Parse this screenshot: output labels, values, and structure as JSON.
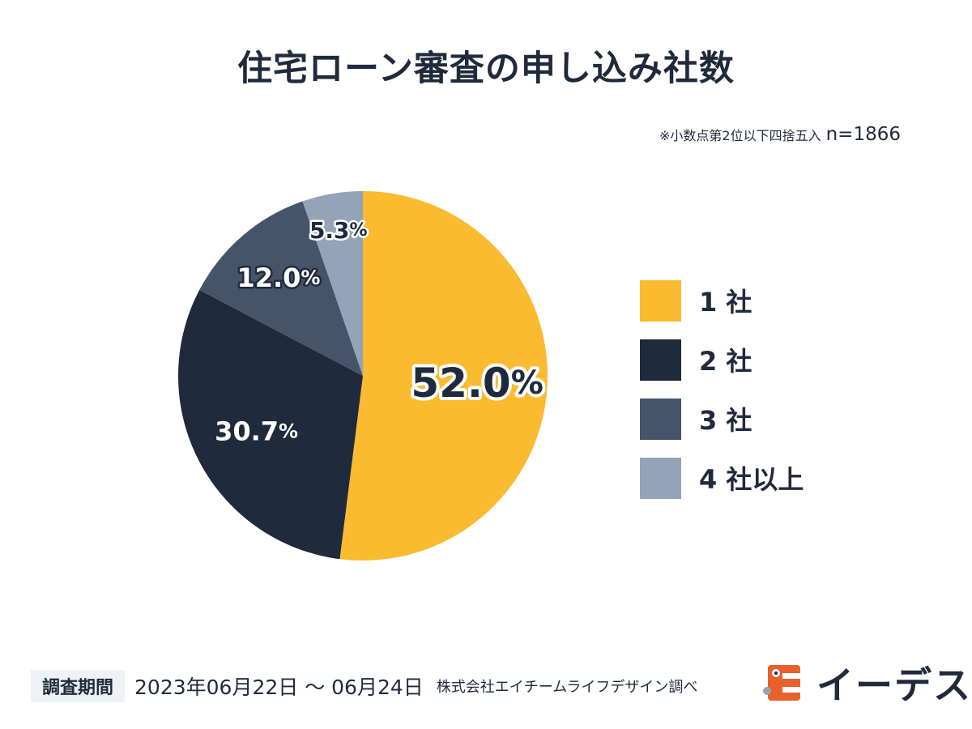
{
  "chart_data": {
    "type": "pie",
    "title": "住宅ローン審査の申し込み社数",
    "note": "※小数点第2位以下四捨五入",
    "sample_size": "n=1866",
    "unit": "%",
    "categories": [
      "1 社",
      "2 社",
      "3 社",
      "4 社以上"
    ],
    "values": [
      52.0,
      30.7,
      12.0,
      5.3
    ],
    "data_labels": [
      "52.0",
      "30.7",
      "12.0",
      "5.3"
    ],
    "colors": [
      "#fbbb30",
      "#1f2a3c",
      "#465469",
      "#94a3b8"
    ],
    "legend_position": "right"
  },
  "footer": {
    "period_label": "調査期間",
    "period": "2023年06月22日 〜 06月24日",
    "credit": "株式会社エイチームライフデザイン調べ"
  },
  "brand": {
    "name": "イーデス",
    "logo_color": "#e8602c"
  }
}
